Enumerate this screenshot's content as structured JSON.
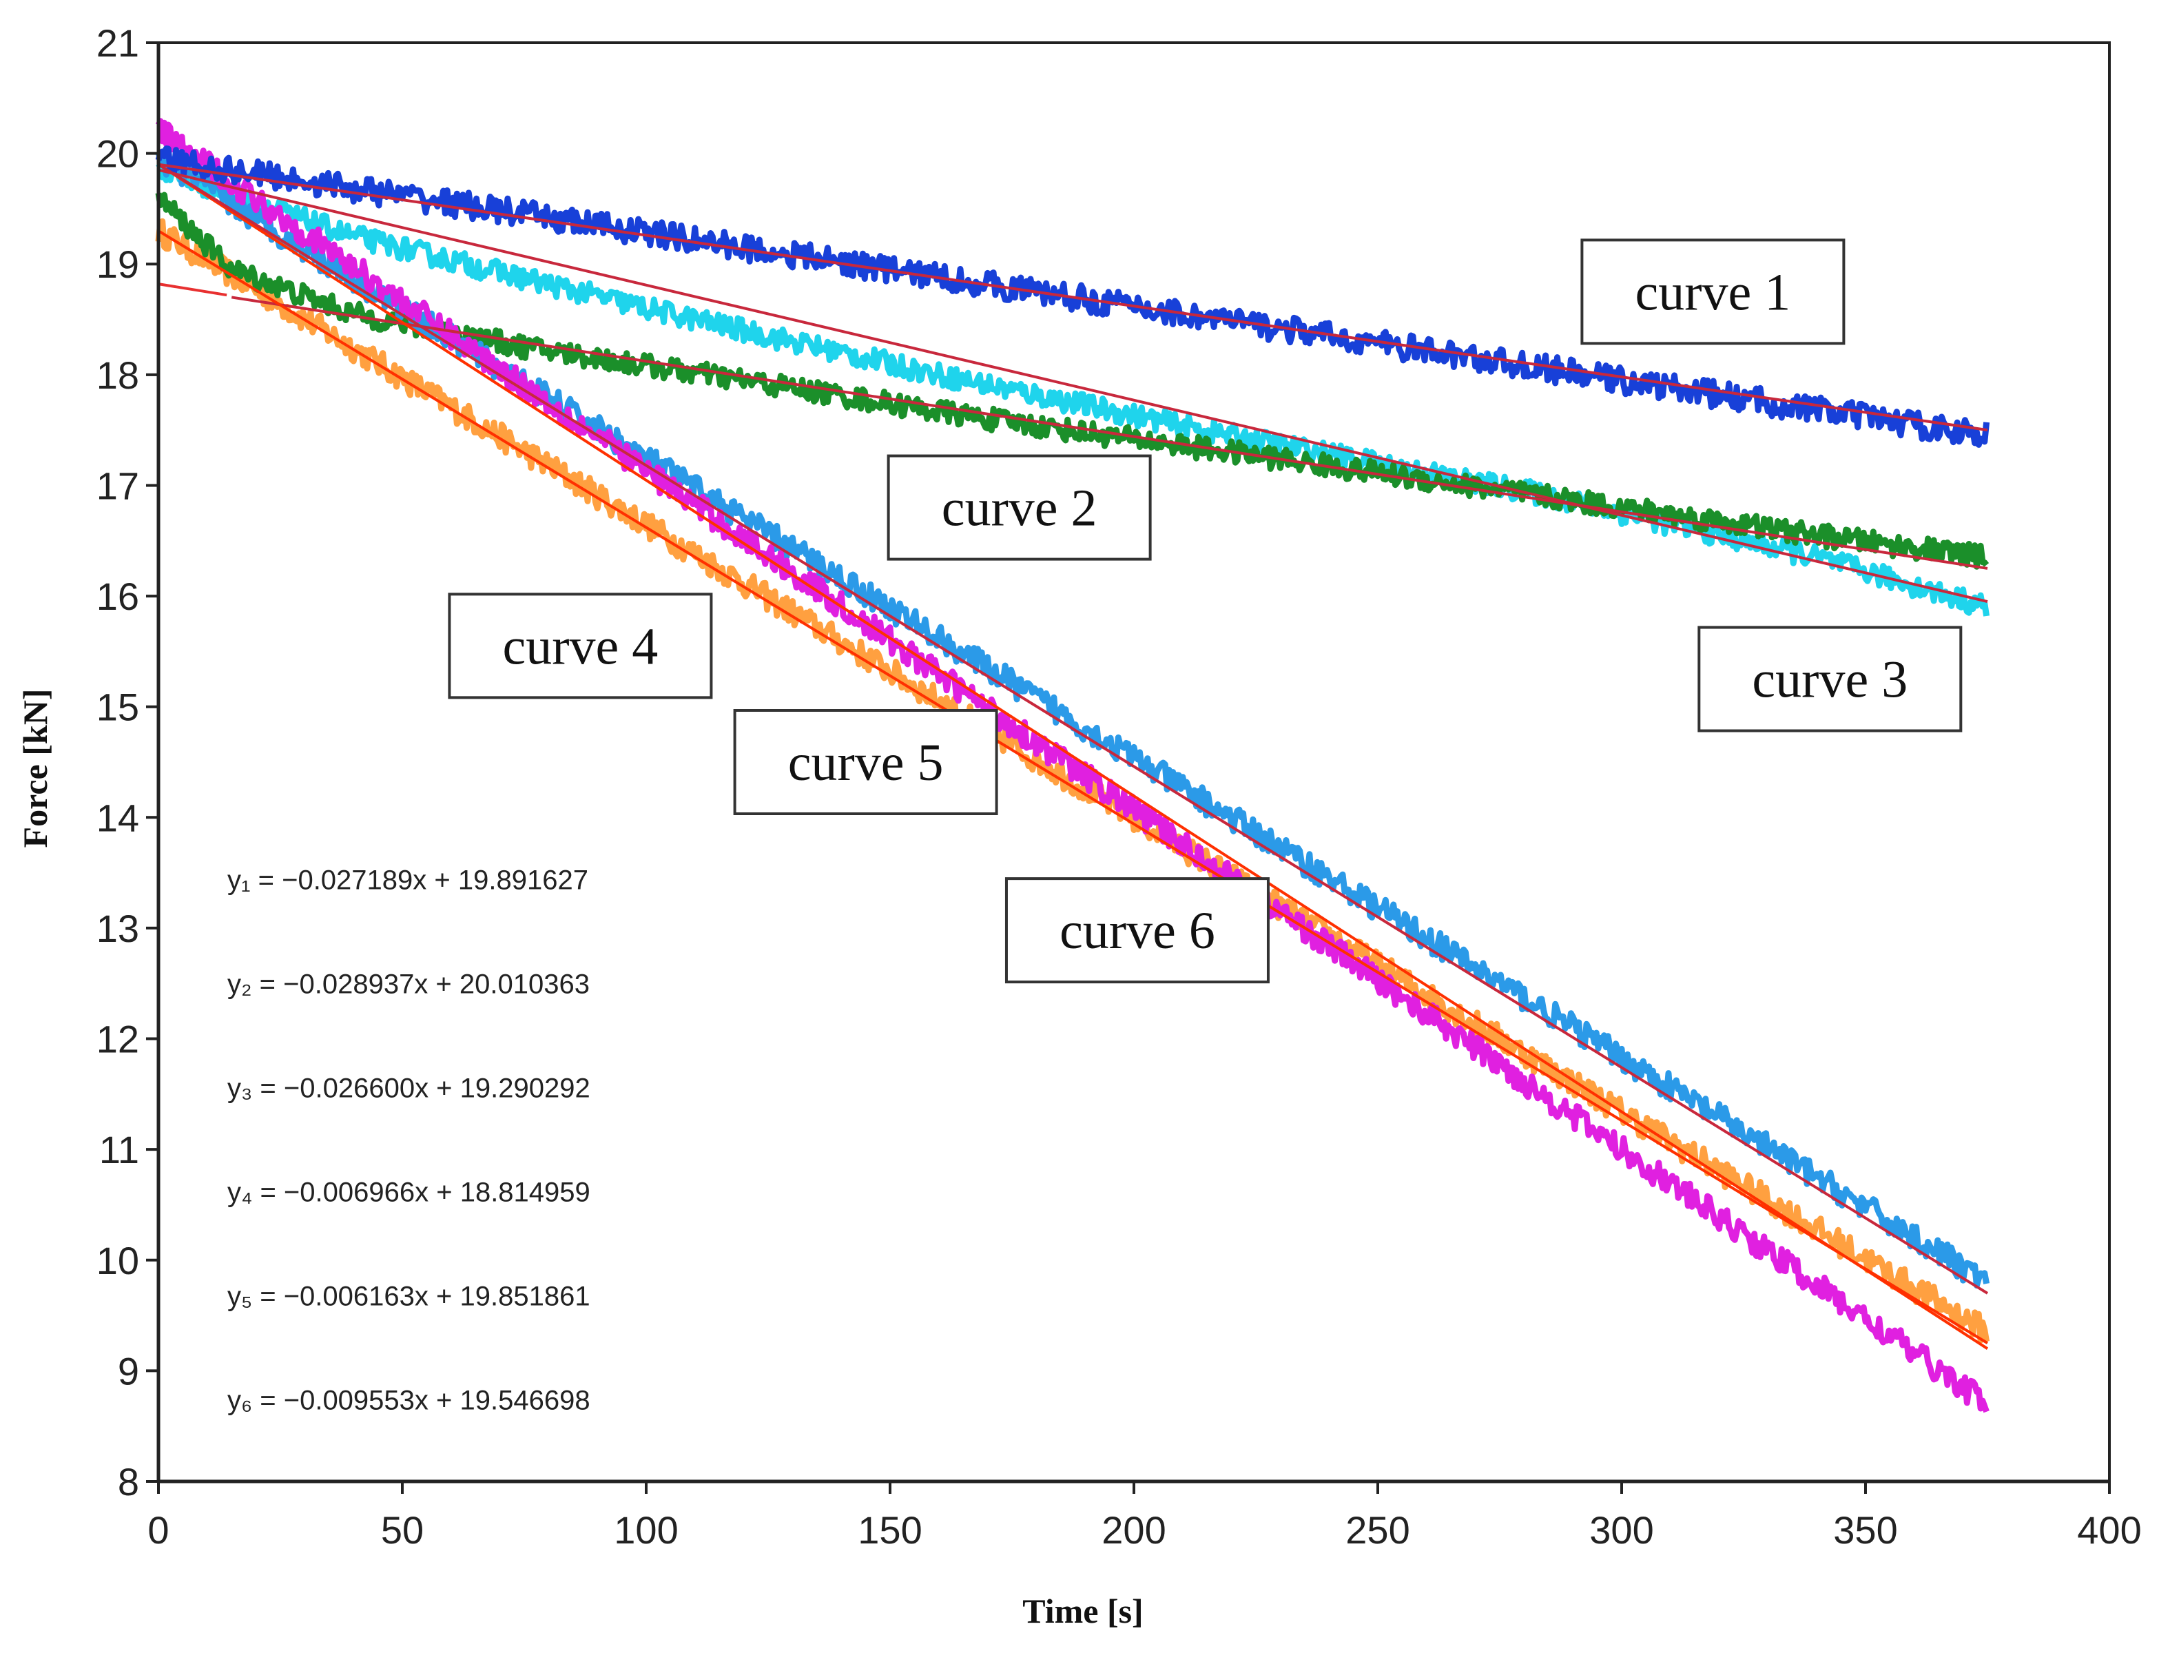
{
  "chart_data": {
    "type": "line",
    "title": "",
    "xlabel": "Time [s]",
    "ylabel": "Force [kN]",
    "xlim": [
      0,
      400
    ],
    "ylim": [
      8,
      21
    ],
    "x_ticks": [
      0,
      50,
      100,
      150,
      200,
      250,
      300,
      350,
      400
    ],
    "y_ticks": [
      8,
      9,
      10,
      11,
      12,
      13,
      14,
      15,
      16,
      17,
      18,
      19,
      20,
      21
    ],
    "grid": false,
    "series": [
      {
        "name": "curve 1",
        "color": "#1840d8",
        "x": [
          0,
          375
        ],
        "values": [
          19.95,
          17.45
        ],
        "noise": 0.12
      },
      {
        "name": "curve 2",
        "color": "#1b8f2a",
        "x": [
          0,
          15,
          40,
          75,
          120,
          170,
          220,
          260,
          300,
          340,
          375
        ],
        "values": [
          19.6,
          18.95,
          18.55,
          18.25,
          17.95,
          17.6,
          17.3,
          17.05,
          16.8,
          16.55,
          16.35
        ],
        "noise": 0.1
      },
      {
        "name": "curve 3",
        "color": "#1fd4ec",
        "x": [
          0,
          40,
          100,
          160,
          220,
          280,
          340,
          375
        ],
        "values": [
          19.85,
          19.25,
          18.6,
          18.0,
          17.45,
          16.95,
          16.35,
          15.9
        ],
        "noise": 0.1
      },
      {
        "name": "curve 4",
        "color": "#ffa040",
        "x": [
          0,
          375
        ],
        "values": [
          19.3,
          9.35
        ],
        "noise": 0.12
      },
      {
        "name": "curve 5",
        "color": "#e020e0",
        "x": [
          0,
          375
        ],
        "values": [
          20.2,
          8.7
        ],
        "noise": 0.12
      },
      {
        "name": "curve 6",
        "color": "#2b9ae8",
        "x": [
          0,
          375
        ],
        "values": [
          19.95,
          9.8
        ],
        "noise": 0.12
      }
    ],
    "fit_lines": [
      {
        "color": "#c8283c",
        "x": [
          0,
          375
        ],
        "values": [
          19.9,
          17.5
        ]
      },
      {
        "color": "#c8283c",
        "x": [
          0,
          375
        ],
        "values": [
          19.85,
          15.95
        ]
      },
      {
        "color": "#c8283c",
        "x": [
          15,
          375
        ],
        "values": [
          18.7,
          16.25
        ]
      },
      {
        "color": "#ff3000",
        "x": [
          0,
          375
        ],
        "values": [
          19.3,
          9.25
        ]
      },
      {
        "color": "#ff3000",
        "x": [
          0,
          375
        ],
        "values": [
          19.9,
          9.2
        ]
      },
      {
        "color": "#c8283c",
        "x": [
          0,
          375
        ],
        "values": [
          19.9,
          9.7
        ]
      },
      {
        "color": "#e83030",
        "x": [
          0,
          14
        ],
        "values": [
          18.82,
          18.72
        ]
      }
    ],
    "annotations": [
      {
        "text": "curve 1",
        "x": 318.7,
        "y": 18.75
      },
      {
        "text": "curve 2",
        "x": 176.5,
        "y": 16.8
      },
      {
        "text": "curve 3",
        "x": 342.7,
        "y": 15.25
      },
      {
        "text": "curve 4",
        "x": 86.5,
        "y": 15.55
      },
      {
        "text": "curve 5",
        "x": 145,
        "y": 14.5
      },
      {
        "text": "curve 6",
        "x": 200.7,
        "y": 12.98
      }
    ],
    "equations": [
      {
        "text": "y₁ = −0.027189x + 19.891627",
        "y": 13.35
      },
      {
        "text": "y₂ = −0.028937x + 20.010363",
        "y": 12.41
      },
      {
        "text": "y₃ = −0.026600x + 19.290292",
        "y": 11.47
      },
      {
        "text": "y₄ = −0.006966x + 18.814959",
        "y": 10.53
      },
      {
        "text": "y₅ = −0.006163x + 19.851861",
        "y": 9.59
      },
      {
        "text": "y₆ = −0.009553x + 19.546698",
        "y": 8.65
      }
    ]
  }
}
